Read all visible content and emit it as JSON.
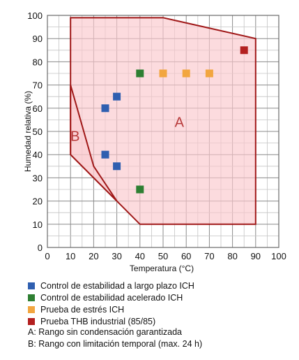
{
  "colors": {
    "blue": "#2f5fb0",
    "green": "#2e7f32",
    "orange": "#f2a640",
    "red": "#b32020",
    "region_fill": "#fbc8cc",
    "region_stroke": "#a01818"
  },
  "chart_data": {
    "type": "scatter",
    "xlabel": "Temperatura (°C)",
    "ylabel": "Humedad relativa (%)",
    "xlim": [
      0,
      100
    ],
    "ylim": [
      0,
      100
    ],
    "x_ticks": [
      "0",
      "10",
      "20",
      "30",
      "40",
      "50",
      "60",
      "70",
      "80",
      "90",
      "100"
    ],
    "y_ticks": [
      "0",
      "10",
      "20",
      "30",
      "40",
      "50",
      "60",
      "70",
      "80",
      "90",
      "100"
    ],
    "grid": true,
    "regions": [
      {
        "name": "A",
        "polygon": [
          [
            10,
            99
          ],
          [
            50,
            99
          ],
          [
            90,
            90
          ],
          [
            90,
            10
          ],
          [
            40,
            10
          ],
          [
            30,
            20
          ],
          [
            10,
            40
          ]
        ]
      },
      {
        "name": "B",
        "polygon": [
          [
            10,
            70
          ],
          [
            20,
            35
          ],
          [
            30,
            20
          ],
          [
            20,
            30
          ],
          [
            10,
            40
          ]
        ]
      }
    ],
    "series": [
      {
        "name": "Control de estabilidad a largo plazo ICH",
        "color": "#2f5fb0",
        "points": [
          [
            25,
            60
          ],
          [
            30,
            65
          ],
          [
            25,
            40
          ],
          [
            30,
            35
          ]
        ]
      },
      {
        "name": "Control de estabilidad acelerado ICH",
        "color": "#2e7f32",
        "points": [
          [
            40,
            75
          ],
          [
            40,
            25
          ]
        ]
      },
      {
        "name": "Prueba de estrés ICH",
        "color": "#f2a640",
        "points": [
          [
            50,
            75
          ],
          [
            60,
            75
          ],
          [
            70,
            75
          ]
        ]
      },
      {
        "name": "Prueba THB industrial (85/85)",
        "color": "#b32020",
        "points": [
          [
            85,
            85
          ]
        ]
      }
    ],
    "legend_position": "bottom"
  },
  "notes": [
    "A: Rango sin condensación garantizada",
    "B: Rango con limitación temporal (max. 24 h)"
  ]
}
